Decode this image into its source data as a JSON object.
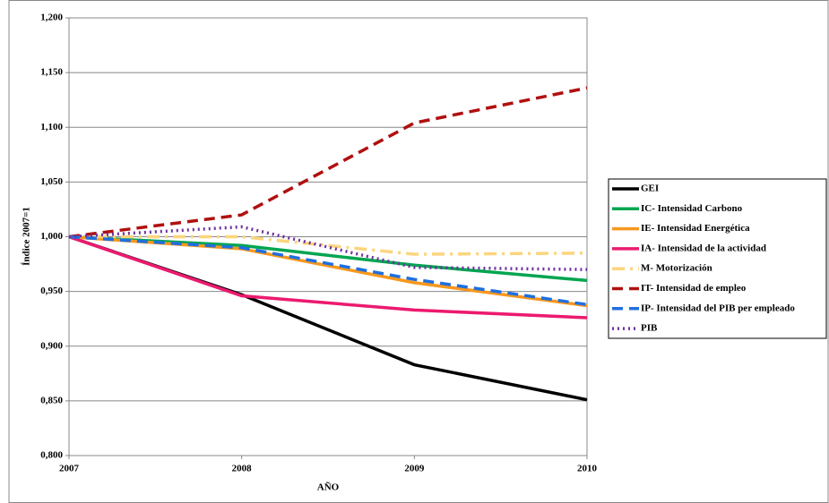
{
  "chart_data": {
    "type": "line",
    "x_label": "AÑO",
    "y_label": "Índice 2007=1",
    "x": [
      2007,
      2008,
      2009,
      2010
    ],
    "xlim": [
      2007,
      2010
    ],
    "xticks": [
      2007,
      2008,
      2009,
      2010
    ],
    "ylim": [
      0.8,
      1.2
    ],
    "yticks": [
      {
        "value": 0.8,
        "label": "0,800"
      },
      {
        "value": 0.85,
        "label": "0,850"
      },
      {
        "value": 0.9,
        "label": "0,900"
      },
      {
        "value": 0.95,
        "label": "0,950"
      },
      {
        "value": 1.0,
        "label": "1,000"
      },
      {
        "value": 1.05,
        "label": "1,050"
      },
      {
        "value": 1.1,
        "label": "1,100"
      },
      {
        "value": 1.15,
        "label": "1,150"
      },
      {
        "value": 1.2,
        "label": "1,200"
      }
    ],
    "grid": true,
    "legend": "right",
    "series": [
      {
        "name": "GEI",
        "color": "#000000",
        "style": "solid",
        "values": [
          1.0,
          0.947,
          0.883,
          0.851
        ]
      },
      {
        "name": "IC- Intensidad Carbono",
        "color": "#00a550",
        "style": "solid",
        "values": [
          1.0,
          0.992,
          0.974,
          0.96
        ]
      },
      {
        "name": "IE- Intensidad Energética",
        "color": "#f7981d",
        "style": "solid",
        "values": [
          1.0,
          0.989,
          0.958,
          0.937
        ]
      },
      {
        "name": "IA- Intensidad de la actividad",
        "color": "#ec1a6e",
        "style": "solid",
        "values": [
          1.0,
          0.946,
          0.933,
          0.926
        ]
      },
      {
        "name": "M- Motorización",
        "color": "#fcd57d",
        "style": "dashdot",
        "values": [
          1.0,
          1.0,
          0.984,
          0.985
        ]
      },
      {
        "name": "IT- Intensidad de empleo",
        "color": "#b0100f",
        "style": "dashed",
        "values": [
          1.0,
          1.02,
          1.104,
          1.136
        ]
      },
      {
        "name": "IP- Intensidad del PIB per empleado",
        "color": "#1f6fe0",
        "style": "dashed",
        "values": [
          1.0,
          0.99,
          0.961,
          0.938
        ]
      },
      {
        "name": "PIB",
        "color": "#7030a0",
        "style": "dotted",
        "values": [
          1.0,
          1.009,
          0.972,
          0.97
        ]
      }
    ]
  }
}
